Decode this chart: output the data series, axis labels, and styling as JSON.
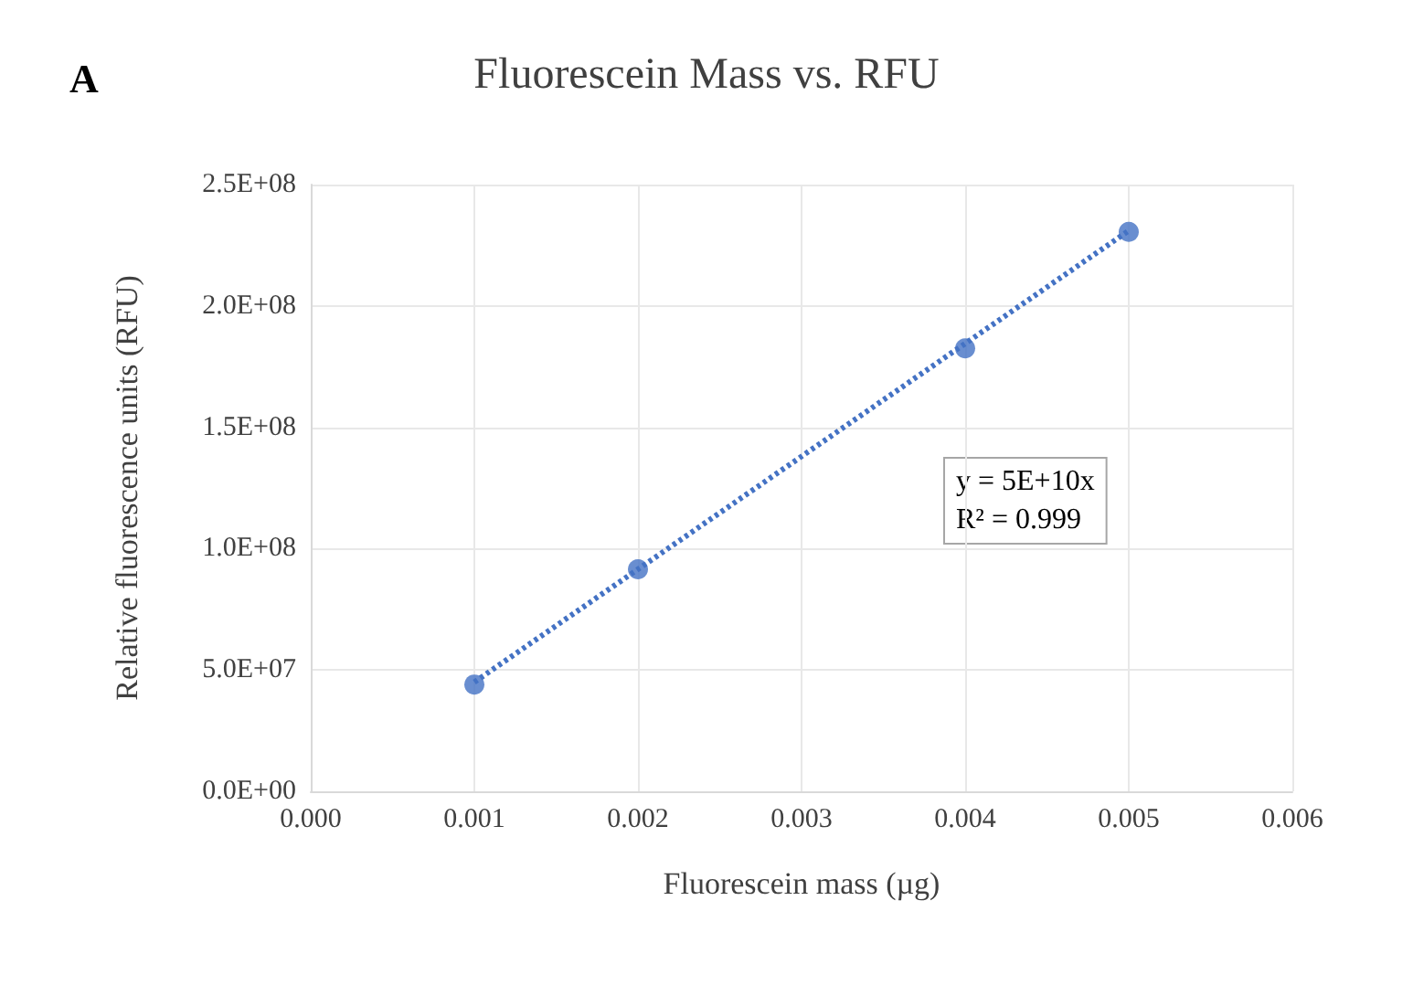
{
  "chart_data": {
    "type": "scatter",
    "title": "Fluorescein Mass vs. RFU",
    "xlabel": "Fluorescein mass (µg)",
    "ylabel": "Relative fluorescence units (RFU)",
    "series": [
      {
        "color": "#4472c4",
        "marker": "circle",
        "x": [
          0.001,
          0.002,
          0.004,
          0.005
        ],
        "values": [
          44000000,
          91500000,
          182500000,
          230500000
        ]
      },
      {
        "type": "line",
        "color": "#4472c4",
        "marker": "none",
        "line_style": "dotted",
        "x": [
          0.001,
          0.005
        ],
        "values": [
          45000000,
          231000000
        ]
      }
    ],
    "xlim": [
      0,
      0.006
    ],
    "xticks": [
      {
        "value": 0,
        "label": "0.000"
      },
      {
        "value": 0.001,
        "label": "0.001"
      },
      {
        "value": 0.002,
        "label": "0.002"
      },
      {
        "value": 0.003,
        "label": "0.003"
      },
      {
        "value": 0.004,
        "label": "0.004"
      },
      {
        "value": 0.005,
        "label": "0.005"
      },
      {
        "value": 0.006,
        "label": "0.006"
      }
    ],
    "ylim": [
      0,
      250000000
    ],
    "yticks": [
      {
        "value": 0,
        "label": "0.0E+00"
      },
      {
        "value": 50000000,
        "label": "5.0E+07"
      },
      {
        "value": 100000000,
        "label": "1.0E+08"
      },
      {
        "value": 150000000,
        "label": "1.5E+08"
      },
      {
        "value": 200000000,
        "label": "2.0E+08"
      },
      {
        "value": 250000000,
        "label": "2.5E+08"
      }
    ],
    "grid": true,
    "annotations": [
      "A",
      "y = 5E+10x\nR² = 0.999"
    ]
  }
}
